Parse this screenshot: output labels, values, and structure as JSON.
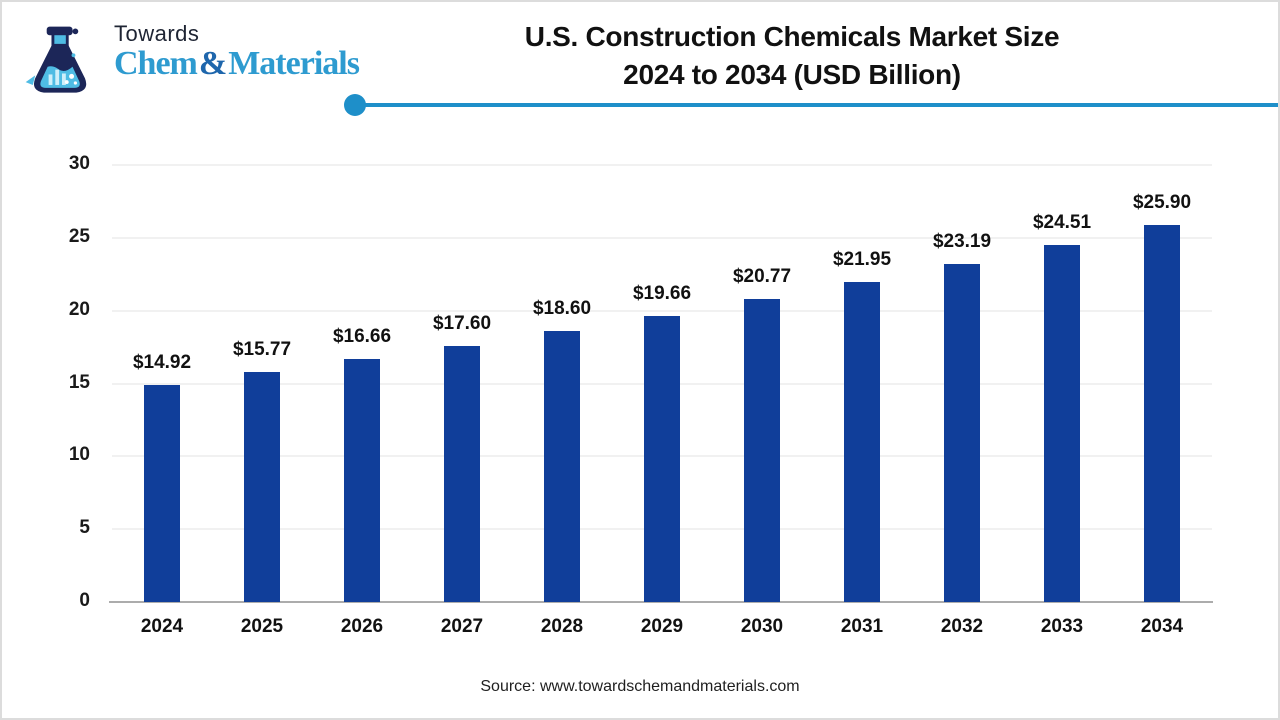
{
  "logo": {
    "towards": "Towards",
    "chem": "Chem",
    "amp": "&",
    "materials": "Materials"
  },
  "header": {
    "title_line1": "U.S. Construction Chemicals Market Size",
    "title_line2": "2024 to 2034 (USD Billion)"
  },
  "footer": {
    "source": "Source: www.towardschemandmaterials.com"
  },
  "colors": {
    "bar": "#103E9A",
    "accent_line": "#1E8FC9",
    "logo_dark_navy": "#1C2658",
    "logo_blue": "#2E9BD0",
    "logo_amp_blue": "#1E66AC",
    "title_text": "#111111",
    "axis_text": "#1A1A1A",
    "gridline": "#F1F1F1",
    "axis_line": "#ACACAC"
  },
  "chart_data": {
    "type": "bar",
    "title": "U.S. Construction Chemicals Market Size 2024 to 2034 (USD Billion)",
    "unit": "USD Billion",
    "categories": [
      "2024",
      "2025",
      "2026",
      "2027",
      "2028",
      "2029",
      "2030",
      "2031",
      "2032",
      "2033",
      "2034"
    ],
    "values": [
      14.92,
      15.77,
      16.66,
      17.6,
      18.6,
      19.66,
      20.77,
      21.95,
      23.19,
      24.51,
      25.9
    ],
    "data_labels": [
      "$14.92",
      "$15.77",
      "$16.66",
      "$17.60",
      "$18.60",
      "$19.66",
      "$20.77",
      "$21.95",
      "$23.19",
      "$24.51",
      "$25.90"
    ],
    "xlabel": "",
    "ylabel": "",
    "ylim": [
      0,
      30
    ],
    "yticks": [
      0,
      5,
      10,
      15,
      20,
      25,
      30
    ],
    "grid": true,
    "legend": "none"
  }
}
